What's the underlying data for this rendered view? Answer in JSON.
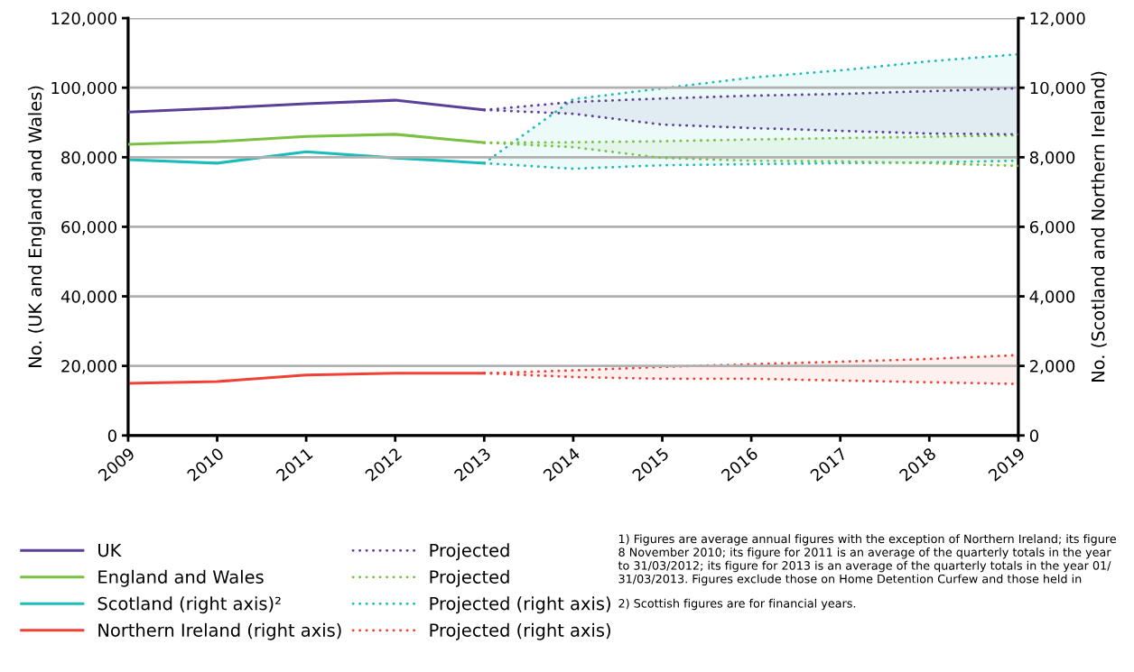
{
  "chart_data": {
    "type": "line",
    "xlim": [
      2009,
      2019
    ],
    "xticks": [
      2009,
      2010,
      2011,
      2012,
      2013,
      2014,
      2015,
      2016,
      2017,
      2018,
      2019
    ],
    "ylabel": "No. (UK and England and Wales)",
    "y2label": "No. (Scotland and Northern Ireland)",
    "ylim": [
      0,
      120000
    ],
    "yticks": [
      {
        "value": 0,
        "label": "0"
      },
      {
        "value": 20000,
        "label": "20,000"
      },
      {
        "value": 40000,
        "label": "40,000"
      },
      {
        "value": 60000,
        "label": "60,000"
      },
      {
        "value": 80000,
        "label": "80,000"
      },
      {
        "value": 100000,
        "label": "100,000"
      },
      {
        "value": 120000,
        "label": "120,000"
      }
    ],
    "y2lim": [
      0,
      12000
    ],
    "y2ticks": [
      {
        "value": 0,
        "label": "0"
      },
      {
        "value": 2000,
        "label": "2,000"
      },
      {
        "value": 4000,
        "label": "4,000"
      },
      {
        "value": 6000,
        "label": "6,000"
      },
      {
        "value": 8000,
        "label": "8,000"
      },
      {
        "value": 10000,
        "label": "10,000"
      },
      {
        "value": 12000,
        "label": "12,000"
      }
    ],
    "grid": "y",
    "legend": "bottom left",
    "series": [
      {
        "name": "UK",
        "color": "#5b3f99",
        "line_style": "solid",
        "x": [
          2009,
          2010,
          2011,
          2012,
          2013
        ],
        "values": [
          93000,
          94100,
          95400,
          96400,
          93600
        ]
      },
      {
        "name": "England and Wales",
        "color": "#7ac143",
        "line_style": "solid",
        "x": [
          2009,
          2010,
          2011,
          2012,
          2013
        ],
        "values": [
          83700,
          84500,
          86000,
          86600,
          84200
        ]
      },
      {
        "name": "Scotland (right axis)²",
        "color": "#1bbcb9",
        "line_style": "solid",
        "axis": "y2",
        "x": [
          2009,
          2010,
          2011,
          2012,
          2013
        ],
        "values": [
          7930,
          7830,
          8160,
          7980,
          7830
        ]
      },
      {
        "name": "Northern Ireland (right axis)",
        "color": "#ef4136",
        "line_style": "solid",
        "axis": "y2",
        "x": [
          2009,
          2010,
          2011,
          2012,
          2013
        ],
        "values": [
          1500,
          1550,
          1740,
          1790,
          1790
        ]
      },
      {
        "name": "Projected",
        "color": "#5b3f99",
        "line_style": "dotted",
        "x": [
          2013,
          2014,
          2015,
          2016,
          2017,
          2018,
          2019
        ],
        "values": [
          93600,
          95900,
          96900,
          97700,
          98200,
          99000,
          99800
        ],
        "upper": [
          93600,
          95900,
          96900,
          97700,
          98200,
          99000,
          99800
        ],
        "lower": [
          93600,
          92500,
          89400,
          88400,
          87600,
          86800,
          86600
        ]
      },
      {
        "name": "Projected",
        "color": "#7ac143",
        "line_style": "dotted",
        "x": [
          2013,
          2014,
          2015,
          2016,
          2017,
          2018,
          2019
        ],
        "values": [
          84200,
          84300,
          84600,
          85100,
          85500,
          85900,
          86300
        ],
        "upper": [
          84200,
          84300,
          84600,
          85100,
          85500,
          85900,
          86300
        ],
        "lower": [
          84200,
          82900,
          79800,
          79000,
          78800,
          78300,
          77500
        ]
      },
      {
        "name": "Projected (right axis)",
        "color": "#1bbcb9",
        "line_style": "dotted",
        "axis": "y2",
        "x": [
          2013,
          2014,
          2015,
          2016,
          2017,
          2018,
          2019
        ],
        "values": [
          7830,
          9670,
          9980,
          10290,
          10500,
          10760,
          10960
        ],
        "upper": [
          7830,
          9670,
          9980,
          10290,
          10500,
          10760,
          10960
        ],
        "lower": [
          7830,
          7670,
          7770,
          7800,
          7830,
          7850,
          7900
        ]
      },
      {
        "name": "Projected (right axis)",
        "color": "#ef4136",
        "line_style": "dotted",
        "axis": "y2",
        "x": [
          2013,
          2014,
          2015,
          2016,
          2017,
          2018,
          2019
        ],
        "values": [
          1790,
          1870,
          1970,
          2050,
          2120,
          2200,
          2310
        ],
        "upper": [
          1790,
          1870,
          1970,
          2050,
          2120,
          2200,
          2310
        ],
        "lower": [
          1790,
          1680,
          1630,
          1630,
          1580,
          1530,
          1480
        ]
      },
      {
        "color": "#5b3f99",
        "line_style": "dotted",
        "x": [
          2013,
          2014,
          2015,
          2016,
          2017,
          2018,
          2019
        ],
        "values": [
          93600,
          92500,
          89400,
          88400,
          87600,
          86800,
          86600
        ]
      },
      {
        "color": "#7ac143",
        "line_style": "dotted",
        "x": [
          2013,
          2014,
          2015,
          2016,
          2017,
          2018,
          2019
        ],
        "values": [
          84200,
          82900,
          79800,
          79000,
          78800,
          78300,
          77500
        ]
      },
      {
        "color": "#1bbcb9",
        "line_style": "dotted",
        "axis": "y2",
        "x": [
          2013,
          2014,
          2015,
          2016,
          2017,
          2018,
          2019
        ],
        "values": [
          7830,
          7670,
          7770,
          7800,
          7830,
          7850,
          7900
        ]
      },
      {
        "color": "#ef4136",
        "line_style": "dotted",
        "axis": "y2",
        "x": [
          2013,
          2014,
          2015,
          2016,
          2017,
          2018,
          2019
        ],
        "values": [
          1790,
          1680,
          1630,
          1630,
          1580,
          1530,
          1480
        ]
      }
    ],
    "annotations": [
      "1) Figures are average annual figures with the exception of Northern Ireland; its figure\n8 November 2010; its figure for 2011 is an average of the quarterly totals in the year\nto 31/03/2012; its figure for 2013 is an average of the quarterly totals in the year 01/\n31/03/2013. Figures exclude those on Home Detention Curfew and those held in",
      "2) Scottish figures are for financial years."
    ]
  }
}
